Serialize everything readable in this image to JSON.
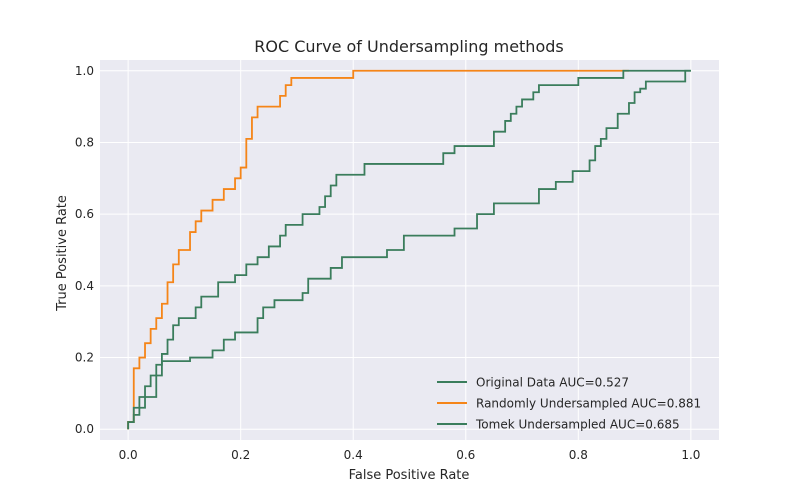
{
  "chart_data": {
    "type": "line",
    "title": "ROC Curve of Undersampling methods",
    "xlabel": "False Positive Rate",
    "ylabel": "True Positive Rate",
    "xlim": [
      -0.05,
      1.05
    ],
    "ylim": [
      -0.03,
      1.03
    ],
    "xticks": [
      "0.0",
      "0.2",
      "0.4",
      "0.6",
      "0.8",
      "1.0"
    ],
    "yticks": [
      "0.0",
      "0.2",
      "0.4",
      "0.6",
      "0.8",
      "1.0"
    ],
    "grid": true,
    "legend_position": "lower-right",
    "series": [
      {
        "name": "Original Data AUC=0.527",
        "color": "#3a7d5c",
        "points": [
          [
            0.0,
            0.0
          ],
          [
            0.0,
            0.02
          ],
          [
            0.01,
            0.02
          ],
          [
            0.01,
            0.04
          ],
          [
            0.02,
            0.04
          ],
          [
            0.02,
            0.06
          ],
          [
            0.03,
            0.06
          ],
          [
            0.03,
            0.09
          ],
          [
            0.05,
            0.09
          ],
          [
            0.05,
            0.15
          ],
          [
            0.06,
            0.15
          ],
          [
            0.06,
            0.19
          ],
          [
            0.11,
            0.19
          ],
          [
            0.11,
            0.2
          ],
          [
            0.15,
            0.2
          ],
          [
            0.15,
            0.22
          ],
          [
            0.17,
            0.22
          ],
          [
            0.17,
            0.25
          ],
          [
            0.19,
            0.25
          ],
          [
            0.19,
            0.27
          ],
          [
            0.23,
            0.27
          ],
          [
            0.23,
            0.31
          ],
          [
            0.24,
            0.31
          ],
          [
            0.24,
            0.34
          ],
          [
            0.26,
            0.34
          ],
          [
            0.26,
            0.36
          ],
          [
            0.31,
            0.36
          ],
          [
            0.31,
            0.38
          ],
          [
            0.32,
            0.38
          ],
          [
            0.32,
            0.42
          ],
          [
            0.36,
            0.42
          ],
          [
            0.36,
            0.45
          ],
          [
            0.38,
            0.45
          ],
          [
            0.38,
            0.48
          ],
          [
            0.46,
            0.48
          ],
          [
            0.46,
            0.5
          ],
          [
            0.49,
            0.5
          ],
          [
            0.49,
            0.54
          ],
          [
            0.58,
            0.54
          ],
          [
            0.58,
            0.56
          ],
          [
            0.62,
            0.56
          ],
          [
            0.62,
            0.6
          ],
          [
            0.65,
            0.6
          ],
          [
            0.65,
            0.63
          ],
          [
            0.73,
            0.63
          ],
          [
            0.73,
            0.67
          ],
          [
            0.76,
            0.67
          ],
          [
            0.76,
            0.69
          ],
          [
            0.79,
            0.69
          ],
          [
            0.79,
            0.72
          ],
          [
            0.82,
            0.72
          ],
          [
            0.82,
            0.75
          ],
          [
            0.83,
            0.75
          ],
          [
            0.83,
            0.79
          ],
          [
            0.84,
            0.79
          ],
          [
            0.84,
            0.81
          ],
          [
            0.85,
            0.81
          ],
          [
            0.85,
            0.84
          ],
          [
            0.87,
            0.84
          ],
          [
            0.87,
            0.88
          ],
          [
            0.89,
            0.88
          ],
          [
            0.89,
            0.91
          ],
          [
            0.9,
            0.91
          ],
          [
            0.9,
            0.94
          ],
          [
            0.91,
            0.94
          ],
          [
            0.91,
            0.95
          ],
          [
            0.92,
            0.95
          ],
          [
            0.92,
            0.97
          ],
          [
            0.99,
            0.97
          ],
          [
            0.99,
            1.0
          ],
          [
            1.0,
            1.0
          ]
        ]
      },
      {
        "name": "Randomly Undersampled AUC=0.881",
        "color": "#f58518",
        "points": [
          [
            0.0,
            0.0
          ],
          [
            0.0,
            0.02
          ],
          [
            0.01,
            0.02
          ],
          [
            0.01,
            0.17
          ],
          [
            0.02,
            0.17
          ],
          [
            0.02,
            0.2
          ],
          [
            0.03,
            0.2
          ],
          [
            0.03,
            0.24
          ],
          [
            0.04,
            0.24
          ],
          [
            0.04,
            0.28
          ],
          [
            0.05,
            0.28
          ],
          [
            0.05,
            0.31
          ],
          [
            0.06,
            0.31
          ],
          [
            0.06,
            0.35
          ],
          [
            0.07,
            0.35
          ],
          [
            0.07,
            0.41
          ],
          [
            0.08,
            0.41
          ],
          [
            0.08,
            0.46
          ],
          [
            0.09,
            0.46
          ],
          [
            0.09,
            0.5
          ],
          [
            0.11,
            0.5
          ],
          [
            0.11,
            0.55
          ],
          [
            0.12,
            0.55
          ],
          [
            0.12,
            0.58
          ],
          [
            0.13,
            0.58
          ],
          [
            0.13,
            0.61
          ],
          [
            0.15,
            0.61
          ],
          [
            0.15,
            0.64
          ],
          [
            0.17,
            0.64
          ],
          [
            0.17,
            0.67
          ],
          [
            0.19,
            0.67
          ],
          [
            0.19,
            0.7
          ],
          [
            0.2,
            0.7
          ],
          [
            0.2,
            0.73
          ],
          [
            0.21,
            0.73
          ],
          [
            0.21,
            0.81
          ],
          [
            0.22,
            0.81
          ],
          [
            0.22,
            0.87
          ],
          [
            0.23,
            0.87
          ],
          [
            0.23,
            0.9
          ],
          [
            0.27,
            0.9
          ],
          [
            0.27,
            0.93
          ],
          [
            0.28,
            0.93
          ],
          [
            0.28,
            0.96
          ],
          [
            0.29,
            0.96
          ],
          [
            0.29,
            0.98
          ],
          [
            0.4,
            0.98
          ],
          [
            0.4,
            1.0
          ],
          [
            0.89,
            1.0
          ]
        ]
      },
      {
        "name": "Tomek Undersampled AUC=0.685",
        "color": "#3a7d5c",
        "points": [
          [
            0.0,
            0.0
          ],
          [
            0.0,
            0.02
          ],
          [
            0.01,
            0.02
          ],
          [
            0.01,
            0.06
          ],
          [
            0.02,
            0.06
          ],
          [
            0.02,
            0.09
          ],
          [
            0.03,
            0.09
          ],
          [
            0.03,
            0.12
          ],
          [
            0.04,
            0.12
          ],
          [
            0.04,
            0.15
          ],
          [
            0.05,
            0.15
          ],
          [
            0.05,
            0.18
          ],
          [
            0.06,
            0.18
          ],
          [
            0.06,
            0.21
          ],
          [
            0.07,
            0.21
          ],
          [
            0.07,
            0.25
          ],
          [
            0.08,
            0.25
          ],
          [
            0.08,
            0.29
          ],
          [
            0.09,
            0.29
          ],
          [
            0.09,
            0.31
          ],
          [
            0.12,
            0.31
          ],
          [
            0.12,
            0.34
          ],
          [
            0.13,
            0.34
          ],
          [
            0.13,
            0.37
          ],
          [
            0.16,
            0.37
          ],
          [
            0.16,
            0.41
          ],
          [
            0.19,
            0.41
          ],
          [
            0.19,
            0.43
          ],
          [
            0.21,
            0.43
          ],
          [
            0.21,
            0.46
          ],
          [
            0.23,
            0.46
          ],
          [
            0.23,
            0.48
          ],
          [
            0.25,
            0.48
          ],
          [
            0.25,
            0.51
          ],
          [
            0.27,
            0.51
          ],
          [
            0.27,
            0.54
          ],
          [
            0.28,
            0.54
          ],
          [
            0.28,
            0.57
          ],
          [
            0.31,
            0.57
          ],
          [
            0.31,
            0.6
          ],
          [
            0.34,
            0.6
          ],
          [
            0.34,
            0.62
          ],
          [
            0.35,
            0.62
          ],
          [
            0.35,
            0.65
          ],
          [
            0.36,
            0.65
          ],
          [
            0.36,
            0.68
          ],
          [
            0.37,
            0.68
          ],
          [
            0.37,
            0.71
          ],
          [
            0.42,
            0.71
          ],
          [
            0.42,
            0.74
          ],
          [
            0.56,
            0.74
          ],
          [
            0.56,
            0.77
          ],
          [
            0.58,
            0.77
          ],
          [
            0.58,
            0.79
          ],
          [
            0.65,
            0.79
          ],
          [
            0.65,
            0.83
          ],
          [
            0.67,
            0.83
          ],
          [
            0.67,
            0.86
          ],
          [
            0.68,
            0.86
          ],
          [
            0.68,
            0.88
          ],
          [
            0.69,
            0.88
          ],
          [
            0.69,
            0.9
          ],
          [
            0.7,
            0.9
          ],
          [
            0.7,
            0.92
          ],
          [
            0.72,
            0.92
          ],
          [
            0.72,
            0.94
          ],
          [
            0.73,
            0.94
          ],
          [
            0.73,
            0.96
          ],
          [
            0.8,
            0.96
          ],
          [
            0.8,
            0.98
          ],
          [
            0.88,
            0.98
          ],
          [
            0.88,
            1.0
          ],
          [
            1.0,
            1.0
          ]
        ]
      }
    ]
  }
}
